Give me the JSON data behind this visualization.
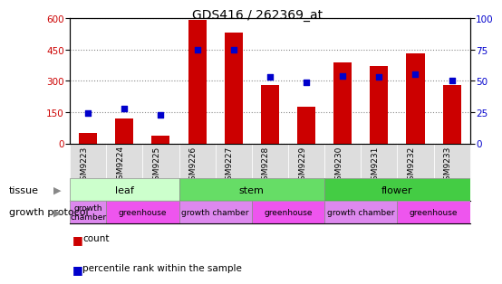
{
  "title": "GDS416 / 262369_at",
  "samples": [
    "GSM9223",
    "GSM9224",
    "GSM9225",
    "GSM9226",
    "GSM9227",
    "GSM9228",
    "GSM9229",
    "GSM9230",
    "GSM9231",
    "GSM9232",
    "GSM9233"
  ],
  "counts": [
    50,
    120,
    35,
    590,
    530,
    280,
    175,
    390,
    370,
    430,
    280
  ],
  "percentiles": [
    24,
    28,
    23,
    75,
    75,
    53,
    49,
    54,
    53,
    55,
    50
  ],
  "ylim_left": [
    0,
    600
  ],
  "ylim_right": [
    0,
    100
  ],
  "yticks_left": [
    0,
    150,
    300,
    450,
    600
  ],
  "yticks_right": [
    0,
    25,
    50,
    75,
    100
  ],
  "bar_color": "#cc0000",
  "dot_color": "#0000cc",
  "tissue_groups": [
    {
      "label": "leaf",
      "start": 0,
      "end": 3,
      "color": "#ccffcc"
    },
    {
      "label": "stem",
      "start": 3,
      "end": 7,
      "color": "#66dd66"
    },
    {
      "label": "flower",
      "start": 7,
      "end": 11,
      "color": "#44cc44"
    }
  ],
  "protocol_groups": [
    {
      "label": "growth\nchamber",
      "start": 0,
      "end": 1,
      "color": "#dd88ee"
    },
    {
      "label": "greenhouse",
      "start": 1,
      "end": 3,
      "color": "#ee55ee"
    },
    {
      "label": "growth chamber",
      "start": 3,
      "end": 5,
      "color": "#dd88ee"
    },
    {
      "label": "greenhouse",
      "start": 5,
      "end": 7,
      "color": "#ee55ee"
    },
    {
      "label": "growth chamber",
      "start": 7,
      "end": 9,
      "color": "#dd88ee"
    },
    {
      "label": "greenhouse",
      "start": 9,
      "end": 11,
      "color": "#ee55ee"
    }
  ],
  "legend_labels": [
    "count",
    "percentile rank within the sample"
  ],
  "tissue_label": "tissue",
  "protocol_label": "growth protocol",
  "xticklabel_bg": "#dddddd"
}
